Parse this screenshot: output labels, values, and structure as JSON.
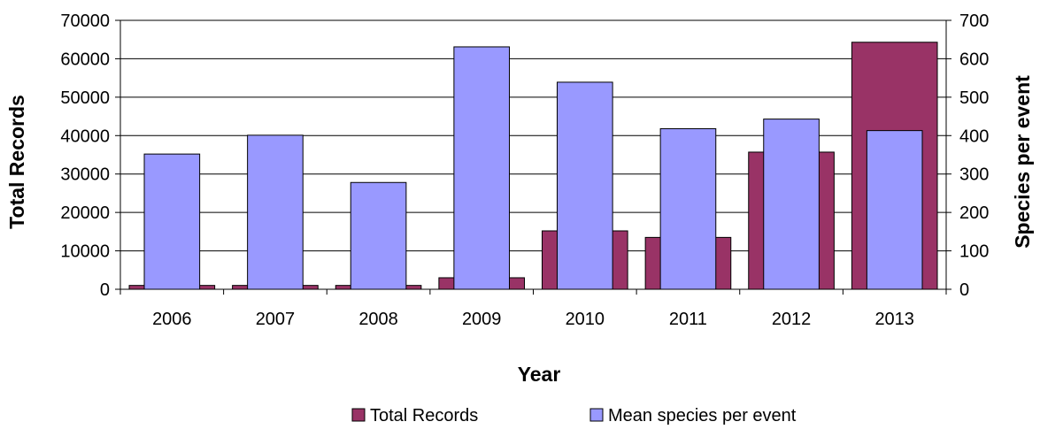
{
  "chart_data": {
    "type": "bar",
    "categories": [
      "2006",
      "2007",
      "2008",
      "2009",
      "2010",
      "2011",
      "2012",
      "2013"
    ],
    "series": [
      {
        "name": "Total Records",
        "axis": "left",
        "color": "#993366",
        "values": [
          1000,
          1000,
          1000,
          3000,
          15200,
          13500,
          35700,
          64300
        ]
      },
      {
        "name": "Mean species per event",
        "axis": "right",
        "color": "#9999ff",
        "values": [
          352,
          401,
          278,
          631,
          539,
          418,
          443,
          413
        ]
      }
    ],
    "xlabel": "Year",
    "ylabel": "Total Records",
    "y2label": "Species per event",
    "ylim": [
      0,
      70000
    ],
    "y2lim": [
      0,
      700
    ],
    "yticks": [
      "0",
      "10000",
      "20000",
      "30000",
      "40000",
      "50000",
      "60000",
      "70000"
    ],
    "y2ticks": [
      "0",
      "100",
      "200",
      "300",
      "400",
      "500",
      "600",
      "700"
    ],
    "grid": true,
    "legend": "bottom"
  }
}
